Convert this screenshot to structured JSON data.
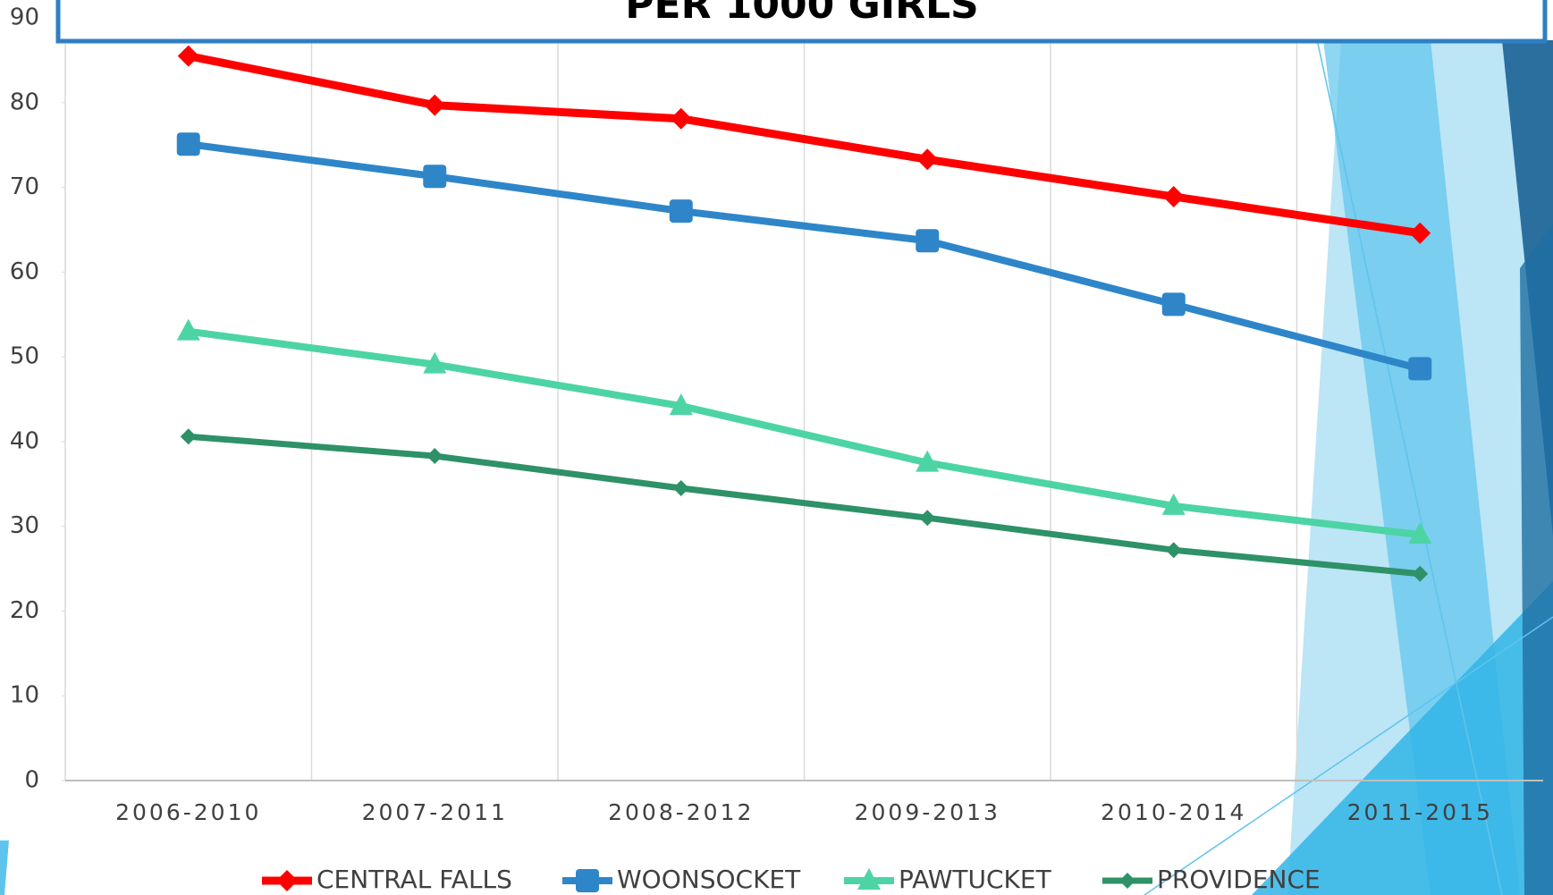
{
  "chart_data": {
    "type": "line",
    "title": "PER 1000 GIRLS",
    "categories": [
      "2006-2010",
      "2007-2011",
      "2008-2012",
      "2009-2013",
      "2010-2014",
      "2011-2015"
    ],
    "series": [
      {
        "name": "CENTRAL FALLS",
        "color": "#ff0000",
        "marker": "diamond",
        "values": [
          85.5,
          79.7,
          78.1,
          73.3,
          68.9,
          64.6
        ]
      },
      {
        "name": "WOONSOCKET",
        "color": "#2e86c9",
        "marker": "square",
        "values": [
          75.1,
          71.3,
          67.2,
          63.7,
          56.2,
          48.6
        ]
      },
      {
        "name": "PAWTUCKET",
        "color": "#4dd4a4",
        "marker": "triangle",
        "values": [
          53,
          49.1,
          44.2,
          37.5,
          32.4,
          29
        ]
      },
      {
        "name": "PROVIDENCE",
        "color": "#2e9168",
        "marker": "x",
        "values": [
          40.6,
          38.3,
          34.5,
          31,
          27.2,
          24.4
        ]
      }
    ],
    "ylim": [
      0,
      90
    ],
    "yticks": [
      0,
      10,
      20,
      30,
      40,
      50,
      60,
      70,
      80,
      90
    ],
    "grid": true,
    "legend": "bottom"
  }
}
